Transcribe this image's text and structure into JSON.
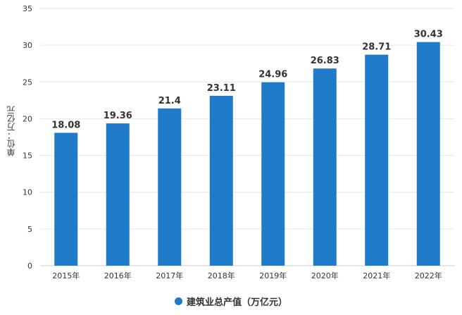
{
  "chart_data": {
    "type": "bar",
    "title": "",
    "xlabel": "",
    "ylabel": "单位：万亿元",
    "categories": [
      "2015年",
      "2016年",
      "2017年",
      "2018年",
      "2019年",
      "2020年",
      "2021年",
      "2022年"
    ],
    "series": [
      {
        "name": "建筑业总产值（万亿元）",
        "values": [
          18.08,
          19.36,
          21.4,
          23.11,
          24.96,
          26.83,
          28.71,
          30.43
        ],
        "labels": [
          "18.08",
          "19.36",
          "21.4",
          "23.11",
          "24.96",
          "26.83",
          "28.71",
          "30.43"
        ]
      }
    ],
    "ylim": [
      0,
      35
    ],
    "yticks": [
      "0",
      "5",
      "10",
      "15",
      "20",
      "25",
      "30",
      "35"
    ],
    "grid": true,
    "legend_position": "bottom-center",
    "colors": {
      "bar": "#1f7ac9",
      "grid": "#e6e6e6",
      "axis_text": "#333333"
    }
  }
}
